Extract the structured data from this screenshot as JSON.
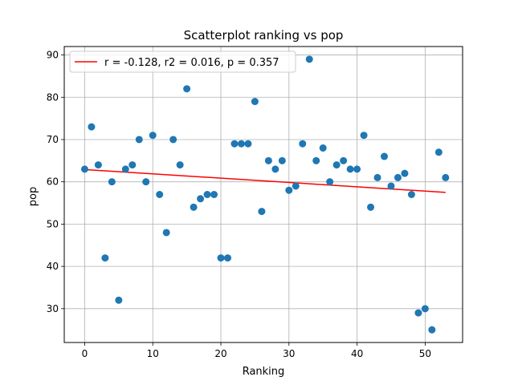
{
  "chart_data": {
    "type": "scatter",
    "title": "Scatterplot ranking vs pop",
    "xlabel": "Ranking",
    "ylabel": "pop",
    "xlim": [
      -3,
      55.5
    ],
    "ylim": [
      22,
      92
    ],
    "xticks": [
      0,
      10,
      20,
      30,
      40,
      50
    ],
    "yticks": [
      30,
      40,
      50,
      60,
      70,
      80,
      90
    ],
    "grid": true,
    "legend_position": "top-left",
    "series": [
      {
        "type": "scatter",
        "color": "#1f77b4",
        "x": [
          0,
          1,
          2,
          3,
          4,
          5,
          6,
          7,
          8,
          9,
          10,
          11,
          12,
          13,
          14,
          15,
          16,
          17,
          18,
          19,
          20,
          21,
          22,
          23,
          24,
          25,
          26,
          27,
          28,
          29,
          30,
          31,
          32,
          33,
          34,
          35,
          36,
          37,
          38,
          39,
          40,
          41,
          42,
          43,
          44,
          45,
          46,
          47,
          48,
          49,
          50,
          51,
          52,
          53
        ],
        "y": [
          63,
          73,
          64,
          42,
          60,
          32,
          63,
          64,
          70,
          60,
          71,
          57,
          48,
          70,
          64,
          82,
          54,
          56,
          57,
          57,
          42,
          42,
          69,
          69,
          69,
          79,
          53,
          65,
          63,
          65,
          58,
          59,
          69,
          89,
          65,
          68,
          60,
          64,
          65,
          63,
          63,
          71,
          54,
          61,
          66,
          59,
          61,
          62,
          57,
          29,
          30,
          25,
          67,
          61
        ]
      },
      {
        "type": "line",
        "name": "r = -0.128, r2 = 0.016, p = 0.357",
        "color": "#ff0000",
        "x": [
          0,
          53
        ],
        "y": [
          62.9,
          57.5
        ]
      }
    ]
  }
}
